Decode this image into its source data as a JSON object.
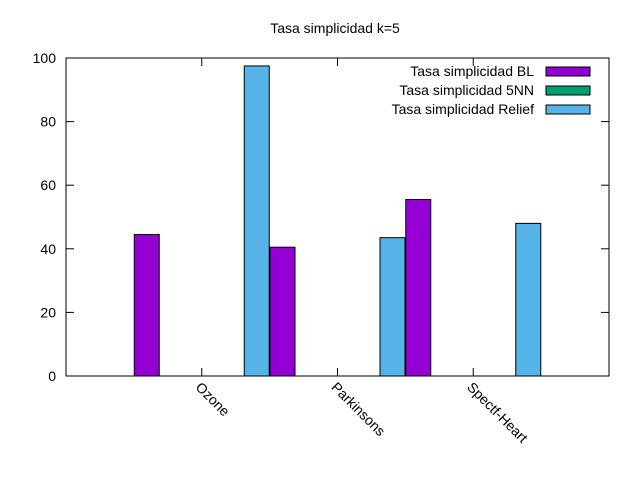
{
  "chart_data": {
    "type": "bar",
    "title": "Tasa simplicidad k=5",
    "xlabel": "",
    "ylabel": "",
    "categories": [
      "Ozone",
      "Parkinsons",
      "Spectf-Heart"
    ],
    "series": [
      {
        "name": "Tasa simplicidad BL",
        "color": "#9400d3",
        "values": [
          44.5,
          40.5,
          55.5
        ]
      },
      {
        "name": "Tasa simplicidad 5NN",
        "color": "#009e73",
        "values": [
          0,
          0,
          0
        ]
      },
      {
        "name": "Tasa simplicidad Relief",
        "color": "#56b4e9",
        "values": [
          97.5,
          43.5,
          48
        ]
      }
    ],
    "ylim": [
      0,
      100
    ],
    "yticks": [
      "0",
      "20",
      "40",
      "60",
      "80",
      "100"
    ],
    "grid": false,
    "legend_position": "top-right"
  }
}
